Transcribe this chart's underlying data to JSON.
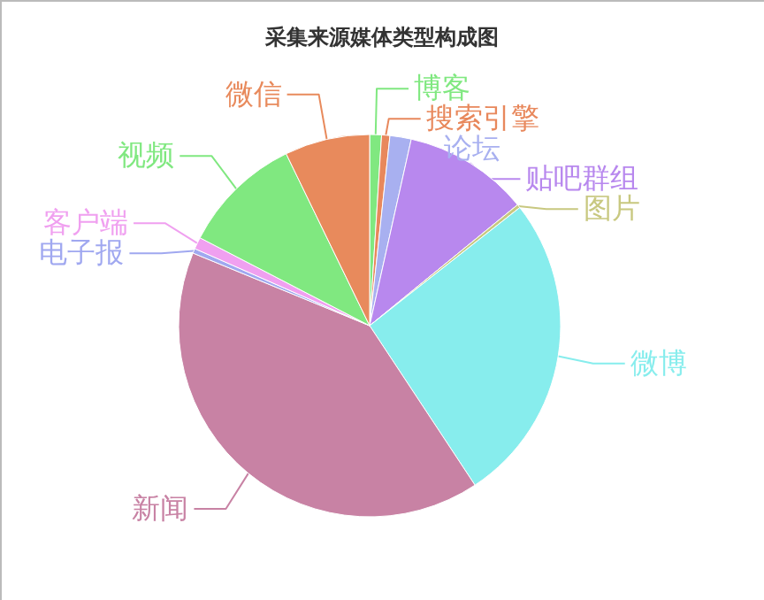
{
  "chart_data": {
    "type": "pie",
    "title": "采集来源媒体类型构成图",
    "categories": [
      "博客",
      "搜索引擎",
      "论坛",
      "贴吧群组",
      "图片",
      "微博",
      "新闻",
      "电子报",
      "客户端",
      "视频",
      "微信"
    ],
    "values": [
      1.0,
      0.7,
      1.8,
      10.6,
      0.3,
      26.3,
      40.5,
      0.4,
      1.0,
      10.2,
      7.2
    ],
    "colors": [
      "#80e880",
      "#e8885c",
      "#a8b0f0",
      "#b888ee",
      "#c8c880",
      "#87eded",
      "#c882a4",
      "#a0a8f0",
      "#f0a0f0",
      "#80e880",
      "#e88a5c"
    ]
  }
}
